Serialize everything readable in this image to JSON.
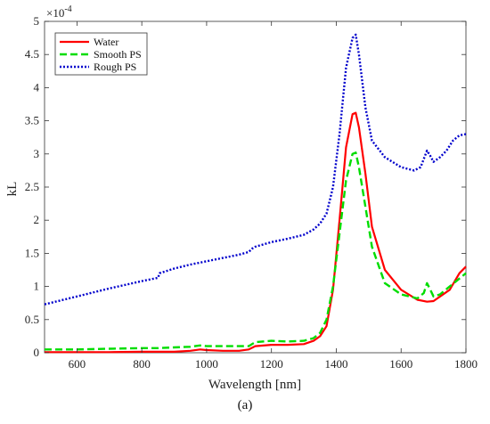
{
  "chart_data": {
    "type": "line",
    "title": "",
    "xlabel": "Wavelength [nm]",
    "ylabel": "kL",
    "y_scale_label": "×10",
    "y_scale_exponent": "-4",
    "xlim": [
      500,
      1800
    ],
    "ylim": [
      0,
      5
    ],
    "xticks": [
      600,
      800,
      1000,
      1200,
      1400,
      1600,
      1800
    ],
    "yticks": [
      0,
      0.5,
      1,
      1.5,
      2,
      2.5,
      3,
      3.5,
      4,
      4.5,
      5
    ],
    "ytick_labels": [
      "0",
      "0.5",
      "1",
      "1.5",
      "2",
      "2.5",
      "3",
      "3.5",
      "4",
      "4.5",
      "5"
    ],
    "grid": false,
    "legend_position": "top-left",
    "series": [
      {
        "name": "Water",
        "color": "#ff0000",
        "style": "solid",
        "x": [
          500,
          600,
          700,
          800,
          900,
          950,
          980,
          1000,
          1050,
          1100,
          1130,
          1150,
          1200,
          1250,
          1300,
          1330,
          1350,
          1370,
          1390,
          1410,
          1430,
          1450,
          1460,
          1470,
          1490,
          1510,
          1550,
          1600,
          1650,
          1680,
          1700,
          1750,
          1780,
          1800
        ],
        "y": [
          0.01,
          0.01,
          0.01,
          0.015,
          0.015,
          0.03,
          0.05,
          0.04,
          0.03,
          0.03,
          0.05,
          0.1,
          0.12,
          0.12,
          0.13,
          0.18,
          0.25,
          0.4,
          0.95,
          2.0,
          3.1,
          3.6,
          3.62,
          3.4,
          2.7,
          1.9,
          1.25,
          0.95,
          0.8,
          0.77,
          0.78,
          0.95,
          1.2,
          1.3
        ]
      },
      {
        "name": "Smooth PS",
        "color": "#00dd00",
        "style": "dashed",
        "x": [
          500,
          600,
          700,
          800,
          850,
          900,
          950,
          980,
          1000,
          1050,
          1100,
          1130,
          1150,
          1200,
          1250,
          1300,
          1330,
          1350,
          1370,
          1390,
          1410,
          1430,
          1450,
          1460,
          1470,
          1490,
          1510,
          1550,
          1600,
          1650,
          1670,
          1680,
          1690,
          1700,
          1720,
          1750,
          1780,
          1800
        ],
        "y": [
          0.05,
          0.05,
          0.06,
          0.07,
          0.07,
          0.08,
          0.09,
          0.11,
          0.1,
          0.1,
          0.1,
          0.1,
          0.16,
          0.18,
          0.17,
          0.18,
          0.22,
          0.3,
          0.5,
          1.0,
          1.8,
          2.6,
          3.0,
          3.02,
          2.8,
          2.2,
          1.6,
          1.05,
          0.88,
          0.82,
          0.9,
          1.05,
          0.95,
          0.85,
          0.88,
          1.0,
          1.12,
          1.2
        ]
      },
      {
        "name": "Rough PS",
        "color": "#0000cc",
        "style": "dotted",
        "x": [
          500,
          600,
          700,
          800,
          850,
          855,
          900,
          950,
          1000,
          1050,
          1100,
          1130,
          1140,
          1150,
          1200,
          1250,
          1300,
          1330,
          1350,
          1370,
          1390,
          1410,
          1430,
          1450,
          1460,
          1470,
          1490,
          1510,
          1550,
          1600,
          1640,
          1660,
          1680,
          1690,
          1700,
          1720,
          1740,
          1760,
          1780,
          1800
        ],
        "y": [
          0.73,
          0.85,
          0.97,
          1.08,
          1.13,
          1.2,
          1.27,
          1.33,
          1.38,
          1.43,
          1.48,
          1.52,
          1.57,
          1.6,
          1.67,
          1.72,
          1.78,
          1.86,
          1.95,
          2.1,
          2.5,
          3.3,
          4.3,
          4.75,
          4.8,
          4.5,
          3.7,
          3.2,
          2.95,
          2.8,
          2.75,
          2.8,
          3.05,
          2.97,
          2.88,
          2.95,
          3.05,
          3.2,
          3.28,
          3.3
        ]
      }
    ]
  },
  "caption": "(a)"
}
